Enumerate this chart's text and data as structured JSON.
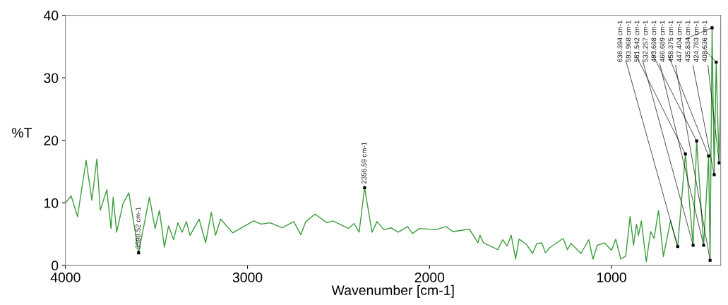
{
  "chart_data": {
    "type": "line",
    "xlabel": "Wavenumber [cm-1]",
    "ylabel": "%T",
    "xlim": [
      4000,
      400
    ],
    "ylim": [
      0,
      40
    ],
    "xticks": [
      4000,
      3000,
      2000,
      1000
    ],
    "yticks": [
      0,
      10,
      20,
      30,
      40
    ],
    "grid": false,
    "marker": "none",
    "line_style": "solid",
    "series": [
      {
        "color": "#3c9c3c",
        "x": [
          4000,
          3969,
          3934,
          3887,
          3855,
          3828,
          3809,
          3773,
          3750,
          3738,
          3719,
          3684,
          3652,
          3598.52,
          3539,
          3508,
          3484,
          3457,
          3434,
          3406,
          3383,
          3359,
          3336,
          3316,
          3266,
          3230,
          3199,
          3176,
          3148,
          3082,
          3004,
          2965,
          2926,
          2875,
          2809,
          2746,
          2707,
          2680,
          2629,
          2563,
          2531,
          2445,
          2414,
          2387,
          2356.59,
          2316,
          2289,
          2250,
          2211,
          2172,
          2121,
          2094,
          2055,
          1965,
          1910,
          1871,
          1781,
          1734,
          1723,
          1703,
          1625,
          1598,
          1574,
          1551,
          1527,
          1508,
          1469,
          1434,
          1410,
          1383,
          1363,
          1340,
          1301,
          1266,
          1242,
          1223,
          1168,
          1125,
          1102,
          1078,
          1039,
          1000,
          977,
          949,
          922,
          898,
          879,
          863,
          852,
          836,
          809,
          785,
          766,
          742,
          715,
          676,
          636.394,
          593.968,
          551.542,
          532.257,
          493.698,
          466.689,
          458.375,
          447.404,
          435.834,
          424.763,
          416,
          408.636,
          402,
          400
        ],
        "values": [
          10.0,
          11.1,
          7.8,
          16.8,
          10.4,
          17.0,
          8.8,
          12.1,
          5.9,
          10.9,
          5.3,
          9.9,
          11.6,
          2.0,
          10.9,
          5.9,
          8.8,
          2.9,
          6.3,
          4.1,
          6.8,
          5.3,
          7.0,
          4.8,
          7.4,
          3.6,
          8.5,
          4.8,
          7.4,
          5.2,
          6.5,
          7.1,
          6.6,
          6.8,
          6.0,
          7.0,
          4.9,
          7.0,
          8.2,
          6.8,
          7.1,
          5.9,
          6.7,
          5.3,
          12.4,
          5.3,
          7.0,
          5.7,
          6.0,
          5.3,
          6.2,
          5.1,
          5.9,
          5.7,
          6.2,
          5.4,
          5.8,
          3.6,
          4.8,
          3.6,
          2.5,
          4.1,
          3.1,
          4.8,
          1.0,
          4.2,
          3.4,
          1.9,
          3.5,
          3.6,
          2.0,
          2.8,
          3.6,
          4.3,
          2.5,
          3.5,
          1.9,
          4.1,
          1.0,
          3.2,
          3.6,
          2.4,
          4.2,
          1.0,
          1.5,
          7.8,
          3.2,
          6.6,
          4.8,
          7.1,
          0.6,
          5.4,
          4.3,
          8.8,
          1.4,
          7.1,
          3.0,
          17.8,
          3.2,
          19.9,
          3.2,
          17.5,
          0.8,
          38,
          14.5,
          32.5,
          23,
          16.4,
          25,
          40
        ]
      }
    ],
    "annotations": [
      {
        "text": "3598.52 cm-1",
        "x": 3598.52,
        "y": 2.0
      },
      {
        "text": "2356.59 cm-1",
        "x": 2356.59,
        "y": 12.4
      },
      {
        "text": "636.394 cm-1",
        "x": 636.394,
        "y": 3.0
      },
      {
        "text": "593.968 cm-1",
        "x": 593.968,
        "y": 17.8
      },
      {
        "text": "551.542 cm-1",
        "x": 551.542,
        "y": 3.2
      },
      {
        "text": "532.257 cm-1",
        "x": 532.257,
        "y": 19.9
      },
      {
        "text": "493.698 cm-1",
        "x": 493.698,
        "y": 3.2
      },
      {
        "text": "466.689 cm-1",
        "x": 466.689,
        "y": 17.5
      },
      {
        "text": "458.375 cm-1",
        "x": 458.375,
        "y": 0.8
      },
      {
        "text": "447.404 cm-1",
        "x": 447.404,
        "y": 38
      },
      {
        "text": "435.834 cm-1",
        "x": 435.834,
        "y": 14.5
      },
      {
        "text": "424.763 cm-1",
        "x": 424.763,
        "y": 32.5
      },
      {
        "text": "408.636 cm-1",
        "x": 408.636,
        "y": 16.4
      }
    ]
  }
}
